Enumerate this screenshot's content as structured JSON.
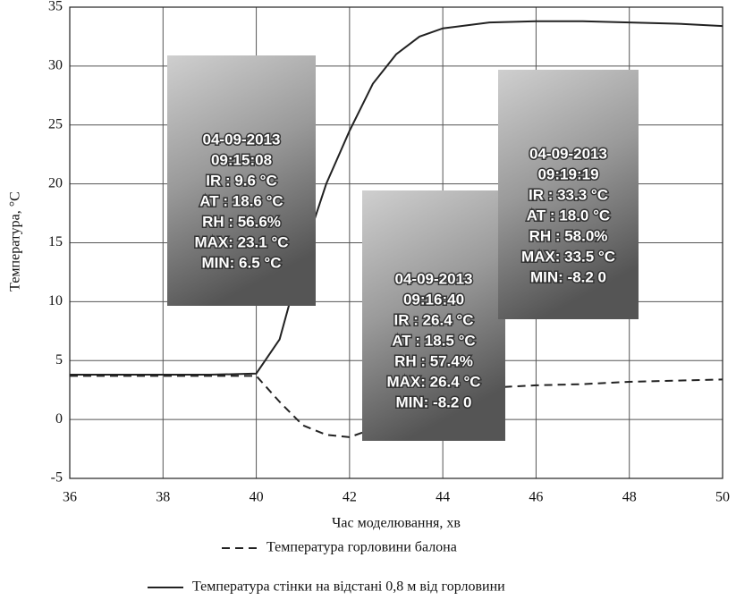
{
  "chart_data": {
    "type": "line",
    "x_label": "Час моделювання, хв",
    "y_label": "Температура,  °C",
    "x": [
      36,
      37,
      38,
      39,
      40,
      40.5,
      41,
      41.5,
      42,
      42.5,
      43,
      43.5,
      44,
      45,
      46,
      47,
      48,
      49,
      50
    ],
    "series": [
      {
        "name": "Температура горловини балона",
        "color": "#222222",
        "dash": true,
        "values": [
          3.7,
          3.7,
          3.7,
          3.7,
          3.7,
          1.5,
          -0.5,
          -1.3,
          -1.5,
          -0.8,
          0.8,
          1.8,
          2.3,
          2.7,
          2.9,
          3.0,
          3.2,
          3.3,
          3.4
        ]
      },
      {
        "name": "Температура стінки на відстані 0,8 м від горловини",
        "color": "#222222",
        "dash": false,
        "values": [
          3.8,
          3.8,
          3.8,
          3.8,
          3.9,
          6.8,
          14,
          20,
          24.5,
          28.5,
          31,
          32.5,
          33.2,
          33.7,
          33.8,
          33.8,
          33.7,
          33.6,
          33.4
        ]
      }
    ],
    "xlim": [
      36,
      50
    ],
    "xticks": [
      36,
      38,
      40,
      42,
      44,
      46,
      48,
      50
    ],
    "ylim": [
      -5,
      35
    ],
    "yticks": [
      -5,
      0,
      5,
      10,
      15,
      20,
      25,
      30,
      35
    ],
    "grid": true,
    "annotations": [
      {
        "lines": [
          "04-09-2013",
          "09:15:08",
          "IR :  9.6 °C",
          "AT : 18.6 °C",
          "RH : 56.6%",
          "MAX: 23.1 °C",
          "MIN:   6.5 °C"
        ]
      },
      {
        "lines": [
          "04-09-2013",
          "09:16:40",
          "IR : 26.4 °C",
          "AT : 18.5 °C",
          "RH : 57.4%",
          "MAX: 26.4 °C",
          "MIN:  -8.2 0"
        ]
      },
      {
        "lines": [
          "04-09-2013",
          "09:19:19",
          "IR : 33.3 °C",
          "AT : 18.0 °C",
          "RH : 58.0%",
          "MAX: 33.5 °C",
          "MIN:  -8.2 0"
        ]
      }
    ]
  }
}
